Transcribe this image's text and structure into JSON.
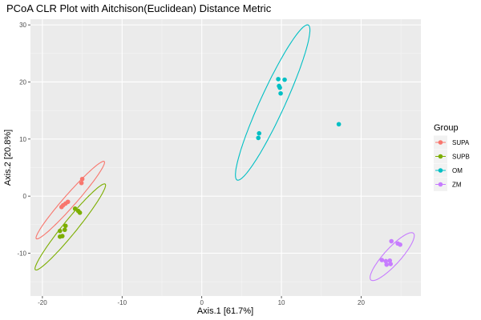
{
  "chart_data": {
    "type": "scatter",
    "title": "PCoA CLR Plot with Aitchison(Euclidean) Distance Metric",
    "xlabel": "Axis.1   [61.7%]",
    "ylabel": "Axis.2   [20.8%]",
    "xlim": [
      -21.5,
      27.5
    ],
    "ylim": [
      -17.5,
      31
    ],
    "x_ticks": [
      -20,
      -10,
      0,
      10,
      20
    ],
    "y_ticks": [
      -10,
      0,
      10,
      20,
      30
    ],
    "grid": true,
    "legend": {
      "title": "Group",
      "position": "right"
    },
    "series": [
      {
        "name": "SUPA",
        "color": "#F8766D",
        "points": [
          {
            "x": -15.0,
            "y": 3.0
          },
          {
            "x": -15.1,
            "y": 2.3
          },
          {
            "x": -16.8,
            "y": -1.0
          },
          {
            "x": -17.1,
            "y": -1.3
          },
          {
            "x": -17.4,
            "y": -1.6
          },
          {
            "x": -17.6,
            "y": -1.9
          }
        ],
        "ellipse": {
          "cx": -16.5,
          "cy": -0.7,
          "rx": 8.0,
          "ry": 0.85,
          "angle": 58
        }
      },
      {
        "name": "SUPB",
        "color": "#7CAE00",
        "points": [
          {
            "x": -15.9,
            "y": -2.2
          },
          {
            "x": -15.5,
            "y": -2.6
          },
          {
            "x": -15.3,
            "y": -2.9
          },
          {
            "x": -17.1,
            "y": -5.2
          },
          {
            "x": -17.2,
            "y": -5.9
          },
          {
            "x": -17.8,
            "y": -6.1
          },
          {
            "x": -17.5,
            "y": -7.0
          },
          {
            "x": -17.8,
            "y": -7.1
          }
        ],
        "ellipse": {
          "cx": -16.5,
          "cy": -5.4,
          "rx": 8.7,
          "ry": 0.95,
          "angle": 60
        }
      },
      {
        "name": "OM",
        "color": "#00BFC4",
        "points": [
          {
            "x": 9.6,
            "y": 20.5
          },
          {
            "x": 10.4,
            "y": 20.4
          },
          {
            "x": 9.7,
            "y": 19.3
          },
          {
            "x": 9.8,
            "y": 19.0
          },
          {
            "x": 9.9,
            "y": 18.0
          },
          {
            "x": 7.2,
            "y": 11.0
          },
          {
            "x": 7.1,
            "y": 10.2
          },
          {
            "x": 17.2,
            "y": 12.6
          }
        ],
        "ellipse": {
          "cx": 8.9,
          "cy": 16.4,
          "rx": 14.3,
          "ry": 1.6,
          "angle": 72
        }
      },
      {
        "name": "ZM",
        "color": "#C77CFF",
        "points": [
          {
            "x": 23.8,
            "y": -7.9
          },
          {
            "x": 24.6,
            "y": -8.3
          },
          {
            "x": 24.9,
            "y": -8.5
          },
          {
            "x": 22.6,
            "y": -11.2
          },
          {
            "x": 23.1,
            "y": -11.4
          },
          {
            "x": 23.6,
            "y": -11.3
          },
          {
            "x": 23.7,
            "y": -11.9
          },
          {
            "x": 23.2,
            "y": -12.0
          }
        ],
        "ellipse": {
          "cx": 23.9,
          "cy": -10.6,
          "rx": 4.9,
          "ry": 1.15,
          "angle": 58
        }
      }
    ]
  }
}
